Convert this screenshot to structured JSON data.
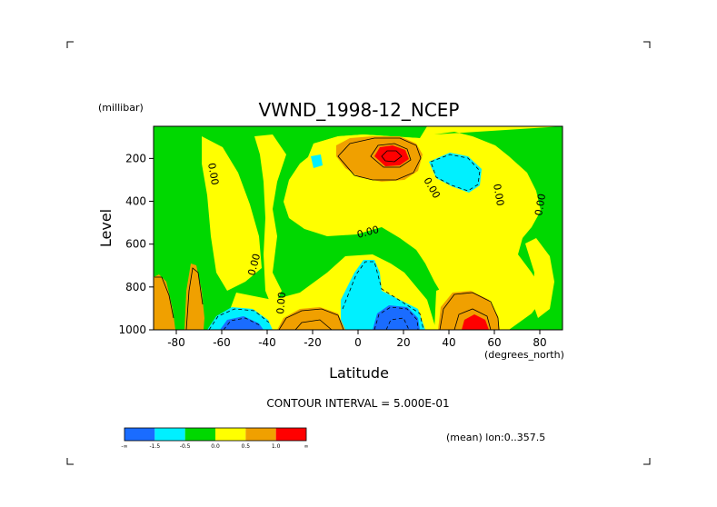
{
  "chart_data": {
    "type": "heatmap",
    "title": "VWND_1998-12_NCEP",
    "xlabel": "Latitude",
    "xunits": "(degrees_north)",
    "ylabel": "Level",
    "yunits": "(millibar)",
    "xlim": [
      -90,
      90
    ],
    "ylim": [
      1000,
      50
    ],
    "y_inverted": true,
    "x_ticks": [
      -80,
      -60,
      -40,
      -20,
      0,
      20,
      40,
      60,
      80
    ],
    "x_tick_labels": [
      "-80",
      "-60",
      "-40",
      "-20",
      "0",
      "20",
      "40",
      "60",
      "80"
    ],
    "y_ticks": [
      200,
      400,
      600,
      800,
      1000
    ],
    "y_tick_labels": [
      "200",
      "400",
      "600",
      "800",
      "1000"
    ],
    "contour_interval_text": "CONTOUR INTERVAL = 5.000E-01",
    "mean_text": "(mean) lon:0..357.5",
    "contour_labels": [
      "0.00",
      "0.00",
      "0.00",
      "0.00",
      "0.00",
      "0.00",
      "0.00",
      "0.00"
    ],
    "colorbar": {
      "levels": [
        "-∞",
        "-1.5",
        "-0.5",
        "0.0",
        "0.5",
        "1.0",
        "∞"
      ],
      "colors": [
        "#1a6cff",
        "#00f0ff",
        "#00d800",
        "#ffff00",
        "#f0a000",
        "#ff0000"
      ]
    },
    "features": [
      {
        "name": "upper-tropospheric maximum",
        "lat": 15,
        "level": 150,
        "value": "> 1.0"
      },
      {
        "name": "upper minimum",
        "lat": 43,
        "level": 220,
        "value": "-1.5 to -0.5"
      },
      {
        "name": "near-surface minimum",
        "lat": 13,
        "level": 960,
        "value": "< -1.5"
      },
      {
        "name": "near-surface minimum",
        "lat": -55,
        "level": 980,
        "value": "< -1.5"
      },
      {
        "name": "near-surface maximum",
        "lat": 51,
        "level": 980,
        "value": "> 1.0"
      }
    ]
  }
}
